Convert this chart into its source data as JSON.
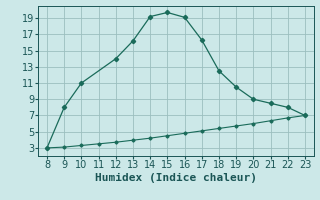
{
  "xlabel": "Humidex (Indice chaleur)",
  "x_main": [
    8,
    9,
    10,
    12,
    13,
    14,
    15,
    16,
    17,
    18,
    19,
    20,
    21,
    22,
    23
  ],
  "y_main": [
    3,
    8,
    11,
    14,
    16.2,
    19.2,
    19.7,
    19.1,
    16.3,
    12.5,
    10.5,
    9.0,
    8.5,
    8.0,
    7.0
  ],
  "x_lower": [
    8,
    9,
    10,
    11,
    12,
    13,
    14,
    15,
    16,
    17,
    18,
    19,
    20,
    21,
    22,
    23
  ],
  "y_lower": [
    3.0,
    3.1,
    3.3,
    3.5,
    3.7,
    3.95,
    4.2,
    4.5,
    4.8,
    5.1,
    5.4,
    5.7,
    6.0,
    6.35,
    6.7,
    7.0
  ],
  "line_color": "#1a6b5a",
  "bg_color": "#cce8e8",
  "grid_color": "#9bbfbf",
  "tick_color": "#1a5555",
  "xlim": [
    7.5,
    23.5
  ],
  "ylim": [
    2.0,
    20.5
  ],
  "xticks": [
    8,
    9,
    10,
    11,
    12,
    13,
    14,
    15,
    16,
    17,
    18,
    19,
    20,
    21,
    22,
    23
  ],
  "yticks": [
    3,
    5,
    7,
    9,
    11,
    13,
    15,
    17,
    19
  ],
  "xlabel_fontsize": 8,
  "tick_fontsize": 7
}
